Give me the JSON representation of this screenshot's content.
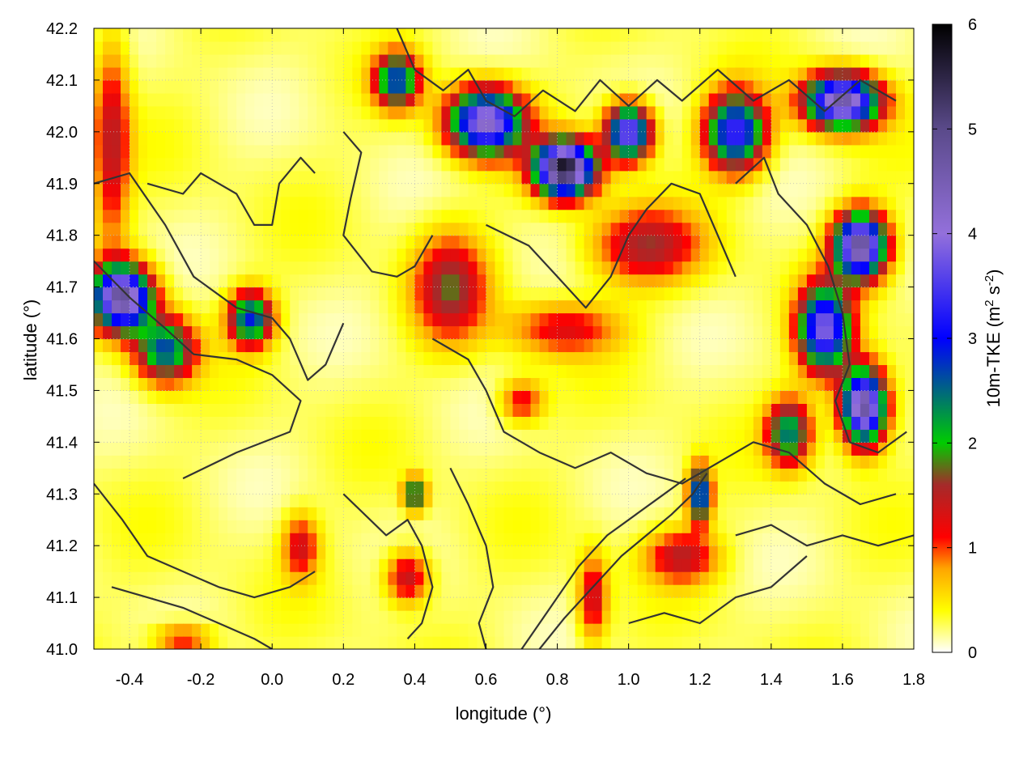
{
  "chart_data": {
    "type": "heatmap",
    "title": "",
    "xlabel": "longitude (°)",
    "ylabel": "latitude (°)",
    "xlim": [
      -0.5,
      1.8
    ],
    "ylim": [
      41.0,
      42.2
    ],
    "xticks": [
      "-0.4",
      "-0.2",
      "0.0",
      "0.2",
      "0.4",
      "0.6",
      "0.8",
      "1.0",
      "1.2",
      "1.4",
      "1.6",
      "1.8"
    ],
    "xtick_values": [
      -0.4,
      -0.2,
      0.0,
      0.2,
      0.4,
      0.6,
      0.8,
      1.0,
      1.2,
      1.4,
      1.6,
      1.8
    ],
    "yticks": [
      "41.0",
      "41.1",
      "41.2",
      "41.3",
      "41.4",
      "41.5",
      "41.6",
      "41.7",
      "41.8",
      "41.9",
      "42.0",
      "42.1",
      "42.2"
    ],
    "ytick_values": [
      41.0,
      41.1,
      41.2,
      41.3,
      41.4,
      41.5,
      41.6,
      41.7,
      41.8,
      41.9,
      42.0,
      42.1,
      42.2
    ],
    "grid": true,
    "colorbar": {
      "label": "10m-TKE (m² s⁻²)",
      "label_main": "10m-TKE (m",
      "label_sup1": "2",
      "label_mid": " s",
      "label_sup2": "-2",
      "label_end": ")",
      "range": [
        0,
        6
      ],
      "ticks": [
        "0",
        "1",
        "2",
        "3",
        "4",
        "5",
        "6"
      ],
      "tick_values": [
        0,
        1,
        2,
        3,
        4,
        5,
        6
      ],
      "stops": [
        {
          "value": 0.0,
          "color": "#ffffff"
        },
        {
          "value": 0.4,
          "color": "#ffff00"
        },
        {
          "value": 0.8,
          "color": "#ffa500"
        },
        {
          "value": 1.1,
          "color": "#ff0000"
        },
        {
          "value": 1.6,
          "color": "#a52a2a"
        },
        {
          "value": 2.0,
          "color": "#00cc00"
        },
        {
          "value": 3.0,
          "color": "#0000ff"
        },
        {
          "value": 4.0,
          "color": "#9370db"
        },
        {
          "value": 5.0,
          "color": "#5a4a8a"
        },
        {
          "value": 6.0,
          "color": "#000000"
        }
      ]
    },
    "hotspots": [
      {
        "lon": -0.42,
        "lat": 41.68,
        "tke": 4.5,
        "sx": 0.08,
        "sy": 0.06
      },
      {
        "lon": -0.3,
        "lat": 41.58,
        "tke": 2.4,
        "sx": 0.08,
        "sy": 0.06
      },
      {
        "lon": -0.06,
        "lat": 41.64,
        "tke": 2.6,
        "sx": 0.06,
        "sy": 0.05
      },
      {
        "lon": -0.45,
        "lat": 41.98,
        "tke": 1.2,
        "sx": 0.05,
        "sy": 0.2
      },
      {
        "lon": 0.5,
        "lat": 41.7,
        "tke": 1.4,
        "sx": 0.1,
        "sy": 0.1
      },
      {
        "lon": 0.82,
        "lat": 41.93,
        "tke": 5.5,
        "sx": 0.08,
        "sy": 0.05
      },
      {
        "lon": 0.6,
        "lat": 42.02,
        "tke": 4.0,
        "sx": 0.1,
        "sy": 0.06
      },
      {
        "lon": 0.35,
        "lat": 42.1,
        "tke": 2.5,
        "sx": 0.06,
        "sy": 0.05
      },
      {
        "lon": 1.05,
        "lat": 41.78,
        "tke": 1.3,
        "sx": 0.15,
        "sy": 0.07
      },
      {
        "lon": 1.0,
        "lat": 42.0,
        "tke": 3.8,
        "sx": 0.06,
        "sy": 0.05
      },
      {
        "lon": 1.3,
        "lat": 42.0,
        "tke": 3.2,
        "sx": 0.08,
        "sy": 0.07
      },
      {
        "lon": 1.6,
        "lat": 42.06,
        "tke": 4.4,
        "sx": 0.1,
        "sy": 0.05
      },
      {
        "lon": 1.65,
        "lat": 41.78,
        "tke": 4.6,
        "sx": 0.07,
        "sy": 0.06
      },
      {
        "lon": 1.55,
        "lat": 41.62,
        "tke": 3.6,
        "sx": 0.07,
        "sy": 0.08
      },
      {
        "lon": 1.66,
        "lat": 41.47,
        "tke": 4.6,
        "sx": 0.06,
        "sy": 0.07
      },
      {
        "lon": 1.45,
        "lat": 41.42,
        "tke": 2.2,
        "sx": 0.06,
        "sy": 0.06
      },
      {
        "lon": 0.82,
        "lat": 41.62,
        "tke": 1.0,
        "sx": 0.15,
        "sy": 0.05
      },
      {
        "lon": 0.7,
        "lat": 41.48,
        "tke": 1.0,
        "sx": 0.06,
        "sy": 0.04
      },
      {
        "lon": 0.38,
        "lat": 41.14,
        "tke": 1.3,
        "sx": 0.06,
        "sy": 0.05
      },
      {
        "lon": 0.08,
        "lat": 41.2,
        "tke": 1.1,
        "sx": 0.05,
        "sy": 0.06
      },
      {
        "lon": 0.4,
        "lat": 41.3,
        "tke": 2.2,
        "sx": 0.03,
        "sy": 0.03
      },
      {
        "lon": 1.2,
        "lat": 41.3,
        "tke": 3.0,
        "sx": 0.03,
        "sy": 0.05
      },
      {
        "lon": 1.15,
        "lat": 41.18,
        "tke": 1.2,
        "sx": 0.1,
        "sy": 0.05
      },
      {
        "lon": 0.9,
        "lat": 41.1,
        "tke": 1.2,
        "sx": 0.04,
        "sy": 0.08
      },
      {
        "lon": -0.25,
        "lat": 41.02,
        "tke": 1.0,
        "sx": 0.08,
        "sy": 0.03
      }
    ],
    "contours": [
      [
        [
          -0.5,
          41.9
        ],
        [
          -0.4,
          41.92
        ],
        [
          -0.3,
          41.82
        ],
        [
          -0.22,
          41.72
        ],
        [
          -0.1,
          41.66
        ],
        [
          0.0,
          41.64
        ],
        [
          0.05,
          41.6
        ],
        [
          0.1,
          41.52
        ],
        [
          0.15,
          41.55
        ],
        [
          0.2,
          41.63
        ]
      ],
      [
        [
          -0.5,
          41.75
        ],
        [
          -0.4,
          41.68
        ],
        [
          -0.3,
          41.62
        ],
        [
          -0.22,
          41.57
        ],
        [
          -0.1,
          41.56
        ],
        [
          0.0,
          41.53
        ],
        [
          0.08,
          41.48
        ],
        [
          0.05,
          41.42
        ],
        [
          -0.1,
          41.38
        ],
        [
          -0.25,
          41.33
        ]
      ],
      [
        [
          -0.35,
          41.9
        ],
        [
          -0.25,
          41.88
        ],
        [
          -0.2,
          41.92
        ],
        [
          -0.1,
          41.88
        ],
        [
          -0.05,
          41.82
        ],
        [
          0.0,
          41.82
        ],
        [
          0.02,
          41.9
        ],
        [
          0.08,
          41.95
        ],
        [
          0.12,
          41.92
        ]
      ],
      [
        [
          0.2,
          42.0
        ],
        [
          0.25,
          41.96
        ],
        [
          0.22,
          41.87
        ],
        [
          0.2,
          41.8
        ],
        [
          0.28,
          41.73
        ],
        [
          0.35,
          41.72
        ],
        [
          0.4,
          41.74
        ],
        [
          0.45,
          41.8
        ]
      ],
      [
        [
          0.45,
          41.6
        ],
        [
          0.55,
          41.56
        ],
        [
          0.6,
          41.5
        ],
        [
          0.65,
          41.42
        ],
        [
          0.75,
          41.38
        ],
        [
          0.85,
          41.35
        ],
        [
          0.95,
          41.38
        ],
        [
          1.05,
          41.34
        ],
        [
          1.15,
          41.32
        ],
        [
          1.25,
          41.36
        ],
        [
          1.35,
          41.4
        ],
        [
          1.45,
          41.38
        ],
        [
          1.55,
          41.32
        ],
        [
          1.65,
          41.28
        ],
        [
          1.75,
          41.3
        ]
      ],
      [
        [
          0.6,
          41.82
        ],
        [
          0.72,
          41.78
        ],
        [
          0.8,
          41.72
        ],
        [
          0.88,
          41.66
        ],
        [
          0.95,
          41.72
        ],
        [
          1.0,
          41.8
        ],
        [
          1.05,
          41.85
        ],
        [
          1.12,
          41.9
        ],
        [
          1.2,
          41.88
        ],
        [
          1.25,
          41.8
        ],
        [
          1.3,
          41.72
        ]
      ],
      [
        [
          0.35,
          42.2
        ],
        [
          0.4,
          42.12
        ],
        [
          0.48,
          42.08
        ],
        [
          0.55,
          42.12
        ],
        [
          0.6,
          42.06
        ],
        [
          0.68,
          42.03
        ],
        [
          0.76,
          42.08
        ],
        [
          0.85,
          42.04
        ],
        [
          0.92,
          42.1
        ],
        [
          1.0,
          42.05
        ],
        [
          1.08,
          42.1
        ],
        [
          1.15,
          42.06
        ],
        [
          1.25,
          42.12
        ],
        [
          1.35,
          42.06
        ],
        [
          1.45,
          42.1
        ],
        [
          1.55,
          42.04
        ],
        [
          1.65,
          42.1
        ],
        [
          1.75,
          42.06
        ]
      ],
      [
        [
          1.3,
          41.9
        ],
        [
          1.38,
          41.95
        ],
        [
          1.42,
          41.88
        ],
        [
          1.5,
          41.82
        ],
        [
          1.56,
          41.74
        ],
        [
          1.6,
          41.65
        ],
        [
          1.62,
          41.55
        ],
        [
          1.58,
          41.48
        ],
        [
          1.62,
          41.4
        ],
        [
          1.7,
          41.38
        ],
        [
          1.78,
          41.42
        ]
      ],
      [
        [
          0.2,
          41.3
        ],
        [
          0.26,
          41.26
        ],
        [
          0.32,
          41.22
        ],
        [
          0.38,
          41.25
        ],
        [
          0.42,
          41.2
        ],
        [
          0.45,
          41.12
        ],
        [
          0.42,
          41.05
        ],
        [
          0.38,
          41.02
        ]
      ],
      [
        [
          0.5,
          41.35
        ],
        [
          0.55,
          41.28
        ],
        [
          0.6,
          41.2
        ],
        [
          0.62,
          41.12
        ],
        [
          0.58,
          41.05
        ],
        [
          0.6,
          41.0
        ]
      ],
      [
        [
          0.75,
          41.0
        ],
        [
          0.82,
          41.06
        ],
        [
          0.9,
          41.12
        ],
        [
          0.98,
          41.18
        ],
        [
          1.05,
          41.22
        ],
        [
          1.12,
          41.26
        ],
        [
          1.18,
          41.3
        ],
        [
          1.22,
          41.34
        ]
      ],
      [
        [
          0.7,
          41.0
        ],
        [
          0.78,
          41.08
        ],
        [
          0.86,
          41.16
        ],
        [
          0.94,
          41.22
        ],
        [
          1.02,
          41.26
        ],
        [
          1.1,
          41.3
        ],
        [
          1.16,
          41.33
        ]
      ],
      [
        [
          -0.5,
          41.32
        ],
        [
          -0.42,
          41.25
        ],
        [
          -0.35,
          41.18
        ],
        [
          -0.25,
          41.15
        ],
        [
          -0.15,
          41.12
        ],
        [
          -0.05,
          41.1
        ],
        [
          0.05,
          41.12
        ],
        [
          0.12,
          41.15
        ]
      ],
      [
        [
          -0.45,
          41.12
        ],
        [
          -0.35,
          41.1
        ],
        [
          -0.25,
          41.08
        ],
        [
          -0.15,
          41.05
        ],
        [
          -0.05,
          41.02
        ],
        [
          0.0,
          41.0
        ]
      ],
      [
        [
          1.3,
          41.22
        ],
        [
          1.4,
          41.24
        ],
        [
          1.5,
          41.2
        ],
        [
          1.6,
          41.22
        ],
        [
          1.7,
          41.2
        ],
        [
          1.8,
          41.22
        ]
      ],
      [
        [
          1.0,
          41.05
        ],
        [
          1.1,
          41.07
        ],
        [
          1.2,
          41.05
        ],
        [
          1.3,
          41.1
        ],
        [
          1.4,
          41.12
        ],
        [
          1.5,
          41.18
        ]
      ]
    ]
  }
}
